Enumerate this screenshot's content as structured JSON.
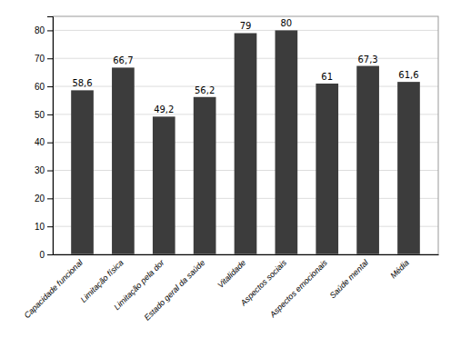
{
  "chart_data": {
    "type": "bar",
    "categories": [
      "Capacidade funcional",
      "Limitação física",
      "Limitação pela dor",
      "Estado geral da saúde",
      "Vitalidade",
      "Aspectos sociais",
      "Aspectos emocionais",
      "Saúde mental",
      "Média"
    ],
    "values": [
      58.6,
      66.7,
      49.2,
      56.2,
      79,
      80,
      61,
      67.3,
      61.6
    ],
    "value_labels": [
      "58,6",
      "66,7",
      "49,2",
      "56,2",
      "79",
      "80",
      "61",
      "67,3",
      "61,6"
    ],
    "data_labels": true,
    "color": "#3c3c3c",
    "ylim": [
      0,
      85
    ],
    "yticks": [
      0,
      10,
      20,
      30,
      40,
      50,
      60,
      70,
      80
    ],
    "grid": true
  }
}
